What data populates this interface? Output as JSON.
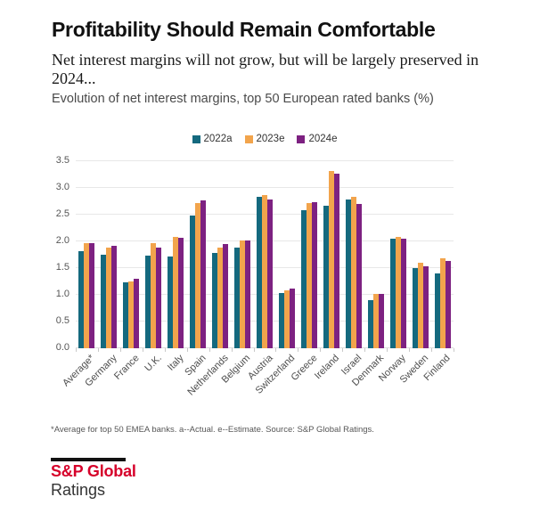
{
  "page_title": "Profitability Should Remain Comfortable",
  "subtitle": "Net interest margins will not grow, but will be largely preserved in 2024...",
  "chart_caption": "Evolution of net interest margins, top 50 European rated banks (%)",
  "footnote": "*Average for top 50 EMEA banks. a--Actual. e--Estimate.  Source: S&P Global Ratings.",
  "logo": {
    "brand": "S&P Global",
    "division": "Ratings",
    "brand_color": "#d6002a"
  },
  "colors": {
    "series_teal": "#14697e",
    "series_orange": "#f2a44c",
    "series_purple": "#7d2181",
    "gridline": "#e7e7e7",
    "text_dark": "#111111",
    "text_gray": "#4a4a4a"
  },
  "chart_data": {
    "type": "bar",
    "title": "Evolution of net interest margins, top 50 European rated banks (%)",
    "xlabel": "",
    "ylabel": "",
    "ylim": [
      0,
      3.5
    ],
    "ytick_step": 0.5,
    "yticks": [
      "0.0",
      "0.5",
      "1.0",
      "1.5",
      "2.0",
      "2.5",
      "3.0",
      "3.5"
    ],
    "grid": true,
    "legend_position": "top-center",
    "categories": [
      "Average*",
      "Germany",
      "France",
      "U.K.",
      "Italy",
      "Spain",
      "Netherlands",
      "Belgium",
      "Austria",
      "Switzerland",
      "Greece",
      "Ireland",
      "Israel",
      "Denmark",
      "Norway",
      "Sweden",
      "Finland"
    ],
    "series": [
      {
        "name": "2022a",
        "color": "#14697e",
        "values": [
          1.81,
          1.75,
          1.24,
          1.74,
          1.71,
          2.48,
          1.78,
          1.88,
          2.83,
          1.04,
          2.58,
          2.67,
          2.79,
          0.9,
          2.05,
          1.5,
          1.4
        ]
      },
      {
        "name": "2023e",
        "color": "#f2a44c",
        "values": [
          1.97,
          1.89,
          1.25,
          1.97,
          2.08,
          2.72,
          1.89,
          2.02,
          2.87,
          1.09,
          2.71,
          3.32,
          2.83,
          1.02,
          2.09,
          1.6,
          1.69
        ]
      },
      {
        "name": "2024e",
        "color": "#7d2181",
        "values": [
          1.96,
          1.92,
          1.3,
          1.88,
          2.06,
          2.76,
          1.95,
          2.01,
          2.79,
          1.12,
          2.73,
          3.26,
          2.7,
          1.01,
          2.05,
          1.54,
          1.63
        ]
      }
    ]
  }
}
